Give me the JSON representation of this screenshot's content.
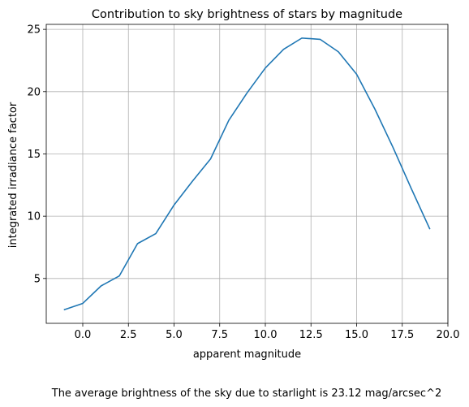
{
  "chart_data": {
    "type": "line",
    "title": "Contribution to sky brightness of stars by magnitude",
    "xlabel": "apparent magnitude",
    "ylabel": "integrated irradiance factor",
    "xlim": [
      -2,
      20
    ],
    "ylim": [
      1.4,
      25.4
    ],
    "x_ticks": [
      0.0,
      2.5,
      5.0,
      7.5,
      10.0,
      12.5,
      15.0,
      17.5,
      20.0
    ],
    "x_tick_labels": [
      "0.0",
      "2.5",
      "5.0",
      "7.5",
      "10.0",
      "12.5",
      "15.0",
      "17.5",
      "20.0"
    ],
    "y_ticks": [
      5,
      10,
      15,
      20,
      25
    ],
    "y_tick_labels": [
      "5",
      "10",
      "15",
      "20",
      "25"
    ],
    "grid": true,
    "series": [
      {
        "color": "#1f77b4",
        "x": [
          -1,
          0,
          1,
          2,
          3,
          4,
          5,
          6,
          7,
          8,
          9,
          10,
          11,
          12,
          13,
          14,
          15,
          16,
          17,
          18,
          19
        ],
        "y": [
          2.5,
          3.0,
          4.4,
          5.2,
          7.8,
          8.6,
          10.9,
          12.8,
          14.6,
          17.7,
          19.9,
          21.9,
          23.4,
          24.3,
          24.2,
          23.2,
          21.4,
          18.6,
          15.5,
          12.2,
          9.0
        ]
      }
    ]
  },
  "footer": {
    "caption": "The average brightness of the sky due to starlight is 23.12 mag/arcsec^2"
  }
}
